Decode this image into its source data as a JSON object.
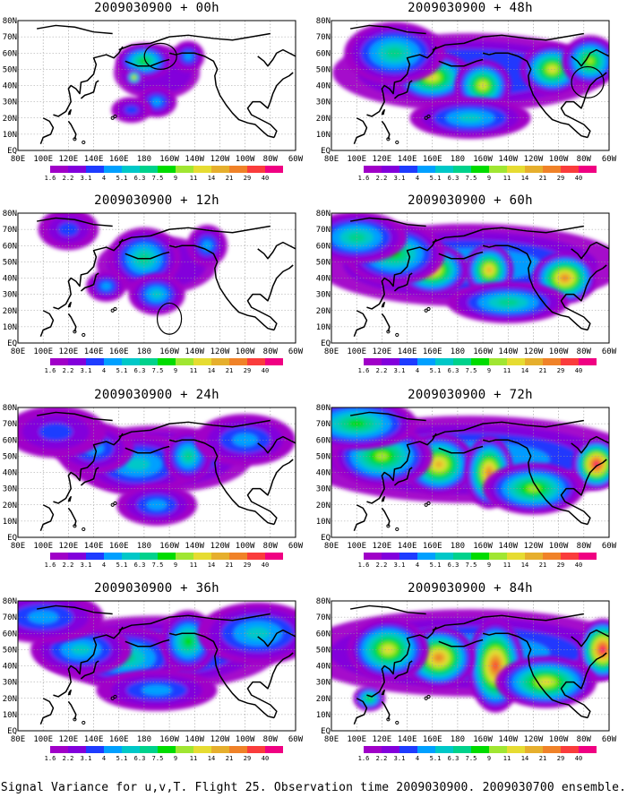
{
  "figure": {
    "caption": "Signal Variance for u,v,T. Flight 25. Observation time 2009030900. 2009030700 ensemble."
  },
  "palette": {
    "levels": [
      "1.6",
      "2.2",
      "3.1",
      "4",
      "5.1",
      "6.3",
      "7.5",
      "9",
      "11",
      "14",
      "21",
      "29",
      "40"
    ],
    "colors": [
      "#a000c8",
      "#8200dc",
      "#1e3cff",
      "#00a0ff",
      "#00c8c8",
      "#00d28c",
      "#00dc00",
      "#a0e632",
      "#e6dc32",
      "#e6af2d",
      "#f08228",
      "#fa3c3c",
      "#f00082"
    ]
  },
  "axes": {
    "x_ticks": [
      "80E",
      "100E",
      "120E",
      "140E",
      "160E",
      "180",
      "160W",
      "140W",
      "120W",
      "100W",
      "80W",
      "60W"
    ],
    "y_ticks": [
      "EQ",
      "10N",
      "20N",
      "30N",
      "40N",
      "50N",
      "60N",
      "70N",
      "80N"
    ]
  },
  "chart_data": [
    {
      "type": "heatmap",
      "title": "2009030900 + 00h",
      "lead": "00h",
      "intensity": 0.25,
      "blobs": [
        [
          180,
          55,
          14,
          7,
          6
        ],
        [
          172,
          45,
          4,
          3,
          8
        ],
        [
          190,
          30,
          10,
          6,
          3
        ],
        [
          215,
          58,
          8,
          6,
          3
        ],
        [
          170,
          25,
          10,
          5,
          2
        ]
      ],
      "circles": [
        [
          193,
          58,
          8,
          5
        ]
      ]
    },
    {
      "type": "heatmap",
      "title": "2009030900 + 12h",
      "lead": "12h",
      "intensity": 0.35,
      "blobs": [
        [
          180,
          52,
          18,
          12,
          5
        ],
        [
          190,
          30,
          14,
          8,
          4
        ],
        [
          150,
          35,
          10,
          6,
          3
        ],
        [
          230,
          60,
          10,
          8,
          3
        ],
        [
          120,
          70,
          15,
          8,
          2
        ]
      ],
      "circles": [
        [
          200,
          15,
          6,
          6
        ]
      ]
    },
    {
      "type": "heatmap",
      "title": "2009030900 + 24h",
      "lead": "24h",
      "intensity": 0.55,
      "blobs": [
        [
          175,
          45,
          30,
          12,
          4
        ],
        [
          215,
          50,
          12,
          10,
          5
        ],
        [
          140,
          55,
          20,
          10,
          3
        ],
        [
          260,
          60,
          25,
          10,
          3
        ],
        [
          190,
          20,
          20,
          8,
          3
        ],
        [
          110,
          65,
          25,
          10,
          2
        ]
      ],
      "circles": []
    },
    {
      "type": "heatmap",
      "title": "2009030900 + 36h",
      "lead": "36h",
      "intensity": 0.7,
      "blobs": [
        [
          165,
          45,
          30,
          12,
          5
        ],
        [
          215,
          55,
          14,
          12,
          6
        ],
        [
          130,
          50,
          25,
          10,
          4
        ],
        [
          270,
          60,
          30,
          12,
          4
        ],
        [
          190,
          25,
          30,
          8,
          3
        ],
        [
          100,
          70,
          30,
          10,
          3
        ]
      ],
      "circles": []
    },
    {
      "type": "heatmap",
      "title": "2009030900 + 48h",
      "lead": "48h",
      "intensity": 0.8,
      "blobs": [
        [
          160,
          45,
          20,
          10,
          8
        ],
        [
          200,
          40,
          14,
          10,
          8
        ],
        [
          255,
          50,
          16,
          10,
          8
        ],
        [
          285,
          55,
          14,
          10,
          7
        ],
        [
          130,
          60,
          25,
          12,
          5
        ],
        [
          190,
          20,
          30,
          8,
          4
        ]
      ],
      "circles": [
        [
          283,
          42,
          8,
          6
        ]
      ]
    },
    {
      "type": "heatmap",
      "title": "2009030900 + 60h",
      "lead": "60h",
      "intensity": 0.9,
      "blobs": [
        [
          160,
          45,
          18,
          10,
          9
        ],
        [
          205,
          45,
          12,
          10,
          9
        ],
        [
          265,
          40,
          16,
          10,
          10
        ],
        [
          130,
          55,
          25,
          12,
          6
        ],
        [
          220,
          25,
          30,
          8,
          5
        ],
        [
          100,
          65,
          25,
          10,
          5
        ]
      ],
      "circles": []
    },
    {
      "type": "heatmap",
      "title": "2009030900 + 72h",
      "lead": "72h",
      "intensity": 1.0,
      "blobs": [
        [
          165,
          45,
          18,
          12,
          9
        ],
        [
          205,
          40,
          12,
          14,
          10
        ],
        [
          290,
          45,
          12,
          10,
          12
        ],
        [
          120,
          50,
          25,
          12,
          7
        ],
        [
          240,
          30,
          25,
          10,
          7
        ],
        [
          100,
          70,
          30,
          10,
          6
        ]
      ],
      "circles": []
    },
    {
      "type": "heatmap",
      "title": "2009030900 + 84h",
      "lead": "84h",
      "intensity": 1.0,
      "blobs": [
        [
          210,
          40,
          14,
          18,
          11
        ],
        [
          165,
          45,
          18,
          12,
          10
        ],
        [
          295,
          50,
          12,
          12,
          12
        ],
        [
          125,
          50,
          20,
          12,
          8
        ],
        [
          250,
          30,
          25,
          10,
          8
        ],
        [
          110,
          20,
          8,
          5,
          6
        ]
      ],
      "circles": []
    }
  ]
}
